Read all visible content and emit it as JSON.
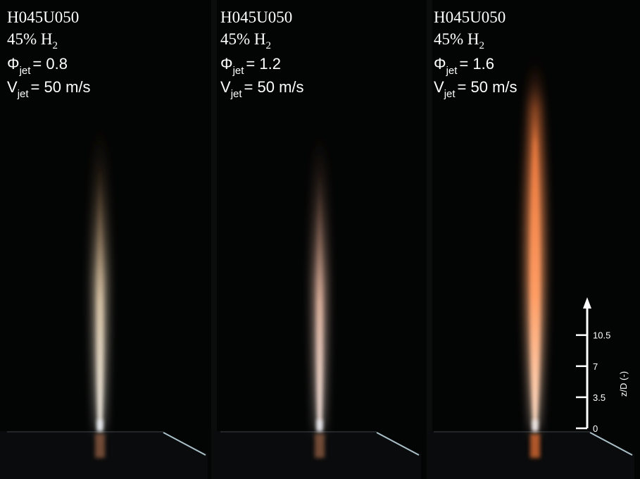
{
  "panels": [
    {
      "case": "H045U050",
      "h2": {
        "text": "45% H",
        "sub": "2"
      },
      "phi": {
        "symbol": "Φ",
        "sub": "jet",
        "value": "= 0.8"
      },
      "velocity": {
        "symbol": "V",
        "sub": "jet",
        "value": "= 50 m/s"
      }
    },
    {
      "case": "H045U050",
      "h2": {
        "text": "45% H",
        "sub": "2"
      },
      "phi": {
        "symbol": "Φ",
        "sub": "jet",
        "value": "= 1.2"
      },
      "velocity": {
        "symbol": "V",
        "sub": "jet",
        "value": "= 50 m/s"
      }
    },
    {
      "case": "H045U050",
      "h2": {
        "text": "45% H",
        "sub": "2"
      },
      "phi": {
        "symbol": "Φ",
        "sub": "jet",
        "value": "= 1.6"
      },
      "velocity": {
        "symbol": "V",
        "sub": "jet",
        "value": "= 50 m/s"
      }
    }
  ],
  "scale": {
    "label": "z/D (-)",
    "ticks": [
      0,
      3.5,
      7,
      10.5
    ]
  }
}
